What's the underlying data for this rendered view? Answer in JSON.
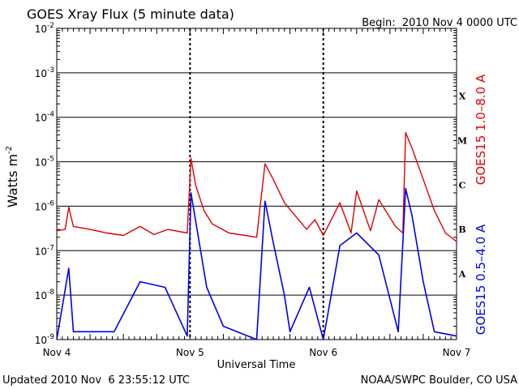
{
  "header": {
    "title": "GOES Xray Flux (5 minute data)",
    "begin": "Begin:  2010 Nov 4 0000 UTC"
  },
  "footer": {
    "updated": "Updated 2010 Nov  6 23:55:12 UTC",
    "source": "NOAA/SWPC Boulder, CO USA"
  },
  "chart_data": {
    "type": "line",
    "title": "GOES Xray Flux (5 minute data)",
    "xlabel": "Universal Time",
    "ylabel": "Watts m",
    "ylabel_superscript": "-2",
    "y_scale": "log",
    "ylim": [
      1e-09,
      0.01
    ],
    "xlim": [
      "2010-11-04T00:00Z",
      "2010-11-07T00:00Z"
    ],
    "y_tick_values": [
      1e-09,
      1e-08,
      1e-07,
      1e-06,
      1e-05,
      0.0001,
      0.001,
      0.01
    ],
    "y_tick_labels": [
      {
        "base": "10",
        "exp": "-9"
      },
      {
        "base": "10",
        "exp": "-8"
      },
      {
        "base": "10",
        "exp": "-7"
      },
      {
        "base": "10",
        "exp": "-6"
      },
      {
        "base": "10",
        "exp": "-5"
      },
      {
        "base": "10",
        "exp": "-4"
      },
      {
        "base": "10",
        "exp": "-3"
      },
      {
        "base": "10",
        "exp": "-2"
      }
    ],
    "x_ticks": [
      {
        "label": "Nov 4",
        "value": "2010-11-04T00:00Z"
      },
      {
        "label": "Nov 5",
        "value": "2010-11-05T00:00Z"
      },
      {
        "label": "Nov 6",
        "value": "2010-11-06T00:00Z"
      },
      {
        "label": "Nov 7",
        "value": "2010-11-07T00:00Z"
      }
    ],
    "flare_classes": [
      {
        "label": "A",
        "value": 3e-08
      },
      {
        "label": "B",
        "value": 3e-07
      },
      {
        "label": "C",
        "value": 3e-06
      },
      {
        "label": "M",
        "value": 3e-05
      },
      {
        "label": "X",
        "value": 0.0003
      }
    ],
    "grid": true,
    "series": [
      {
        "name": "GOES15 1.0–8.0 A",
        "color": "#e00000",
        "points": [
          [
            "2010-11-04T00:00Z",
            2.8e-07
          ],
          [
            "2010-11-04T01:30Z",
            3e-07
          ],
          [
            "2010-11-04T02:10Z",
            9.5e-07
          ],
          [
            "2010-11-04T03:00Z",
            3.5e-07
          ],
          [
            "2010-11-04T06:00Z",
            3e-07
          ],
          [
            "2010-11-04T09:00Z",
            2.5e-07
          ],
          [
            "2010-11-04T12:00Z",
            2.2e-07
          ],
          [
            "2010-11-04T15:00Z",
            3.5e-07
          ],
          [
            "2010-11-04T17:30Z",
            2.3e-07
          ],
          [
            "2010-11-04T20:00Z",
            3e-07
          ],
          [
            "2010-11-04T23:30Z",
            2.5e-07
          ],
          [
            "2010-11-05T00:10Z",
            1.2e-05
          ],
          [
            "2010-11-05T01:00Z",
            3e-06
          ],
          [
            "2010-11-05T02:30Z",
            8e-07
          ],
          [
            "2010-11-05T04:00Z",
            4e-07
          ],
          [
            "2010-11-05T07:00Z",
            2.5e-07
          ],
          [
            "2010-11-05T10:00Z",
            2.2e-07
          ],
          [
            "2010-11-05T12:00Z",
            2e-07
          ],
          [
            "2010-11-05T13:30Z",
            9e-06
          ],
          [
            "2010-11-05T15:00Z",
            4e-06
          ],
          [
            "2010-11-05T17:00Z",
            1.2e-06
          ],
          [
            "2010-11-05T19:00Z",
            6e-07
          ],
          [
            "2010-11-05T21:00Z",
            3e-07
          ],
          [
            "2010-11-05T22:30Z",
            5e-07
          ],
          [
            "2010-11-06T00:00Z",
            2.2e-07
          ],
          [
            "2010-11-06T03:00Z",
            1.2e-06
          ],
          [
            "2010-11-06T05:00Z",
            2.5e-07
          ],
          [
            "2010-11-06T06:00Z",
            2.2e-06
          ],
          [
            "2010-11-06T08:30Z",
            2.8e-07
          ],
          [
            "2010-11-06T10:00Z",
            1.4e-06
          ],
          [
            "2010-11-06T13:00Z",
            3.5e-07
          ],
          [
            "2010-11-06T14:20Z",
            2.5e-07
          ],
          [
            "2010-11-06T14:50Z",
            4.5e-05
          ],
          [
            "2010-11-06T16:00Z",
            2e-05
          ],
          [
            "2010-11-06T18:00Z",
            4e-06
          ],
          [
            "2010-11-06T20:00Z",
            8e-07
          ],
          [
            "2010-11-06T22:00Z",
            2.5e-07
          ],
          [
            "2010-11-07T00:00Z",
            1.6e-07
          ]
        ]
      },
      {
        "name": "GOES15 0.5–4.0 A",
        "color": "#0000ee",
        "points": [
          [
            "2010-11-04T00:00Z",
            1e-09
          ],
          [
            "2010-11-04T02:10Z",
            4e-08
          ],
          [
            "2010-11-04T03:00Z",
            1.5e-09
          ],
          [
            "2010-11-04T10:20Z",
            1.5e-09
          ],
          [
            "2010-11-04T15:00Z",
            2e-08
          ],
          [
            "2010-11-04T19:30Z",
            1.5e-08
          ],
          [
            "2010-11-04T23:30Z",
            1.2e-09
          ],
          [
            "2010-11-05T00:10Z",
            2e-06
          ],
          [
            "2010-11-05T01:30Z",
            2e-07
          ],
          [
            "2010-11-05T03:00Z",
            1.5e-08
          ],
          [
            "2010-11-05T06:00Z",
            2e-09
          ],
          [
            "2010-11-05T12:00Z",
            1e-09
          ],
          [
            "2010-11-05T13:30Z",
            1.3e-06
          ],
          [
            "2010-11-05T15:00Z",
            1.5e-07
          ],
          [
            "2010-11-05T17:00Z",
            1e-08
          ],
          [
            "2010-11-05T18:00Z",
            1.5e-09
          ],
          [
            "2010-11-05T21:30Z",
            1.5e-08
          ],
          [
            "2010-11-06T00:00Z",
            1e-09
          ],
          [
            "2010-11-06T03:00Z",
            1.3e-07
          ],
          [
            "2010-11-06T06:00Z",
            2.5e-07
          ],
          [
            "2010-11-06T10:00Z",
            8e-08
          ],
          [
            "2010-11-06T13:30Z",
            1.5e-09
          ],
          [
            "2010-11-06T14:50Z",
            2.5e-06
          ],
          [
            "2010-11-06T16:00Z",
            6e-07
          ],
          [
            "2010-11-06T18:00Z",
            2e-08
          ],
          [
            "2010-11-06T20:00Z",
            1.5e-09
          ],
          [
            "2010-11-07T00:00Z",
            1.2e-09
          ]
        ]
      }
    ]
  }
}
